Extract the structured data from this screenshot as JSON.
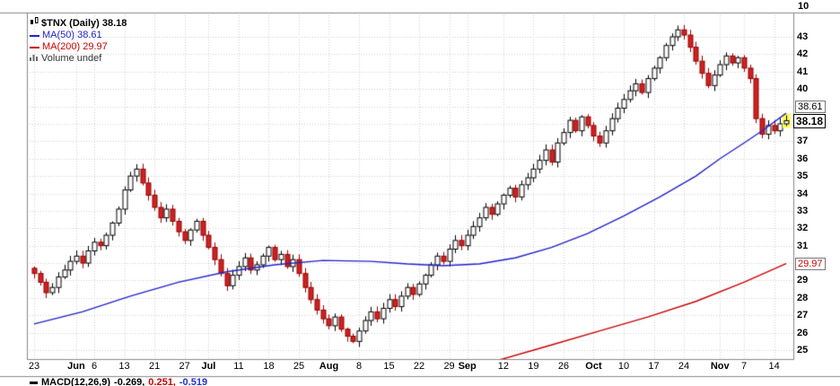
{
  "legend": {
    "symbol_line": "$TNX (Daily) 38.18",
    "ma50_line": "MA(50) 38.61",
    "ma200_line": "MA(200) 29.97",
    "volume_line": "Volume undef"
  },
  "axis": {
    "upper_tick": "10",
    "ma50_box": "38.61",
    "last_box": "38.18",
    "ma200_box": "29.97"
  },
  "macd": {
    "label": "MACD(12,26,9)",
    "v1": "-0.269,",
    "v2": "0.251,",
    "v3": "-0.519"
  },
  "colors": {
    "ma50": "#2222cc",
    "ma200": "#cc0000",
    "candle_up": "#000000",
    "candle_down": "#cc2222",
    "candle_down_stroke": "#990000",
    "grid": "#cfcfcf",
    "border": "#888888",
    "highlight": "#ffff55"
  },
  "chart_data": {
    "type": "candlestick",
    "title": "$TNX (Daily)",
    "last": 38.18,
    "volume": "undef",
    "overlays": [
      {
        "name": "MA(50)",
        "last": 38.61
      },
      {
        "name": "MA(200)",
        "last": 29.97
      }
    ],
    "ylim": [
      25,
      43
    ],
    "y_ticks": [
      43,
      42,
      41,
      40,
      37,
      36,
      35,
      34,
      33,
      32,
      31,
      29,
      28,
      27,
      26,
      25
    ],
    "x_ticks": [
      {
        "label": "23",
        "i": 0,
        "month": false
      },
      {
        "label": "Jun",
        "i": 7,
        "month": true
      },
      {
        "label": "6",
        "i": 10,
        "month": false
      },
      {
        "label": "13",
        "i": 15,
        "month": false
      },
      {
        "label": "21",
        "i": 20,
        "month": false
      },
      {
        "label": "27",
        "i": 25,
        "month": false
      },
      {
        "label": "Jul",
        "i": 29,
        "month": true
      },
      {
        "label": "11",
        "i": 34,
        "month": false
      },
      {
        "label": "18",
        "i": 39,
        "month": false
      },
      {
        "label": "25",
        "i": 44,
        "month": false
      },
      {
        "label": "Aug",
        "i": 49,
        "month": true
      },
      {
        "label": "8",
        "i": 54,
        "month": false
      },
      {
        "label": "15",
        "i": 59,
        "month": false
      },
      {
        "label": "22",
        "i": 64,
        "month": false
      },
      {
        "label": "29",
        "i": 69,
        "month": false
      },
      {
        "label": "Sep",
        "i": 72,
        "month": true
      },
      {
        "label": "12",
        "i": 78,
        "month": false
      },
      {
        "label": "19",
        "i": 83,
        "month": false
      },
      {
        "label": "26",
        "i": 88,
        "month": false
      },
      {
        "label": "Oct",
        "i": 93,
        "month": true
      },
      {
        "label": "10",
        "i": 98,
        "month": false
      },
      {
        "label": "17",
        "i": 103,
        "month": false
      },
      {
        "label": "24",
        "i": 108,
        "month": false
      },
      {
        "label": "Nov",
        "i": 114,
        "month": true
      },
      {
        "label": "7",
        "i": 118,
        "month": false
      },
      {
        "label": "14",
        "i": 123,
        "month": false
      }
    ],
    "closes": [
      29.4,
      28.9,
      28.3,
      28.6,
      29.2,
      29.6,
      30.1,
      30.4,
      30.0,
      30.7,
      31.2,
      31.0,
      31.6,
      32.3,
      33.1,
      34.2,
      35.0,
      35.4,
      34.6,
      33.9,
      33.2,
      32.6,
      33.1,
      32.4,
      31.8,
      31.3,
      31.9,
      32.4,
      31.6,
      30.9,
      30.2,
      29.4,
      28.7,
      29.3,
      29.8,
      30.3,
      29.6,
      29.9,
      30.4,
      30.9,
      30.2,
      30.5,
      29.8,
      30.2,
      29.4,
      28.6,
      27.9,
      27.3,
      26.8,
      26.4,
      26.9,
      26.2,
      25.8,
      25.5,
      26.1,
      26.7,
      27.2,
      26.8,
      27.4,
      27.9,
      27.5,
      28.1,
      28.6,
      28.2,
      28.8,
      29.3,
      29.9,
      30.4,
      30.1,
      30.8,
      31.3,
      31.0,
      31.6,
      32.1,
      32.6,
      33.2,
      32.8,
      33.4,
      33.9,
      34.3,
      33.8,
      34.5,
      34.9,
      35.4,
      35.9,
      36.5,
      35.8,
      36.9,
      37.5,
      38.2,
      37.6,
      38.4,
      37.9,
      37.3,
      36.9,
      37.6,
      38.3,
      38.9,
      39.4,
      39.9,
      40.3,
      39.8,
      40.6,
      41.2,
      41.8,
      42.5,
      43.0,
      43.4,
      43.1,
      42.4,
      41.6,
      40.9,
      40.2,
      40.8,
      41.4,
      41.9,
      41.5,
      41.8,
      41.2,
      40.6,
      38.3,
      37.4,
      37.9,
      37.6,
      38.0,
      38.18
    ],
    "ma50_points": [
      [
        0,
        26.5
      ],
      [
        8,
        27.2
      ],
      [
        16,
        28.1
      ],
      [
        24,
        28.9
      ],
      [
        32,
        29.5
      ],
      [
        40,
        29.9
      ],
      [
        48,
        30.15
      ],
      [
        56,
        30.1
      ],
      [
        62,
        29.95
      ],
      [
        68,
        29.85
      ],
      [
        74,
        29.95
      ],
      [
        80,
        30.3
      ],
      [
        86,
        30.9
      ],
      [
        92,
        31.7
      ],
      [
        98,
        32.7
      ],
      [
        104,
        33.8
      ],
      [
        110,
        35.0
      ],
      [
        114,
        36.0
      ],
      [
        118,
        36.9
      ],
      [
        121,
        37.6
      ],
      [
        125,
        38.61
      ]
    ],
    "ma200_points": [
      [
        70,
        23.8
      ],
      [
        78,
        24.5
      ],
      [
        86,
        25.3
      ],
      [
        94,
        26.1
      ],
      [
        102,
        26.9
      ],
      [
        110,
        27.8
      ],
      [
        118,
        28.9
      ],
      [
        125,
        29.97
      ]
    ]
  }
}
